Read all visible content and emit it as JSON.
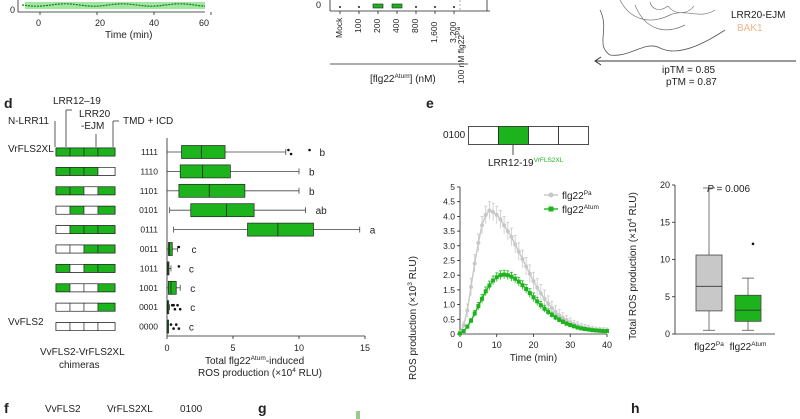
{
  "colors": {
    "green": "#1db31d",
    "dark_green": "#0f7a0f",
    "light_green": "#8be08b",
    "grey": "#c8c8c8",
    "dark_grey": "#7a7a7a",
    "peach": "#f0b48c",
    "axis": "#222222"
  },
  "panel_top_left": {
    "xlabel": "Time (min)",
    "ticks": [
      "0",
      "20",
      "40",
      "60"
    ]
  },
  "panel_top_mid": {
    "categories": [
      "Mock",
      "100",
      "200",
      "400",
      "800",
      "1,600",
      "3,200"
    ],
    "extra_category": "100 nM flg22",
    "extra_sup": "Pa",
    "xlabel_main": "[flg22",
    "xlabel_sup": "Atum",
    "xlabel_end": "] (nM)"
  },
  "panel_top_right": {
    "legend_main": "LRR20-EJM",
    "legend_sub": "BAK1",
    "iptm": "ipTM = 0.85",
    "ptm": "pTM = 0.87"
  },
  "panel_d": {
    "label": "d",
    "domains": {
      "lrr12_19": "LRR12–19",
      "n_lrr11": "N-LRR11",
      "lrr20_a": "LRR20",
      "lrr20_b": "-EJM",
      "tmd_icd": "TMD + ICD"
    },
    "top_construct": "VrFLS2XL",
    "bottom_construct": "VvFLS2",
    "chimera_caption_1": "VvFLS2-VrFLS2XL",
    "chimera_caption_2": "chimeras",
    "xlabel_1a": "Total flg22",
    "xlabel_1sup": "Atum",
    "xlabel_1b": "-induced",
    "xlabel_2": "ROS production (×10",
    "xlabel_2sup": "4",
    "xlabel_2b": " RLU)"
  },
  "panel_e": {
    "label": "e",
    "construct_code": "0100",
    "construct_label": "LRR12-19",
    "construct_sup": "VrFLS2XL"
  },
  "panel_labels": {
    "f": "f",
    "g": "g",
    "h": "h"
  },
  "panel_f": {
    "labels": [
      "VvFLS2",
      "VrFLS2XL",
      "0100"
    ]
  },
  "chart_data": [
    {
      "type": "box",
      "id": "d",
      "orientation": "horizontal",
      "title": "",
      "xlabel": "Total flg22Atum-induced ROS production (×10^4 RLU)",
      "xlim": [
        0,
        15
      ],
      "xticks": [
        "0",
        "5",
        "10",
        "15"
      ],
      "rows": [
        {
          "code": "1111",
          "pattern": [
            1,
            1,
            1,
            1
          ],
          "whislo": 0.0,
          "q1": 1.1,
          "med": 2.6,
          "q3": 4.4,
          "whishi": 9.0,
          "outliers": [
            9.2,
            9.4,
            10.8
          ],
          "letter": "b"
        },
        {
          "code": "1110",
          "pattern": [
            1,
            1,
            1,
            0
          ],
          "whislo": 0.0,
          "q1": 1.0,
          "med": 2.7,
          "q3": 4.8,
          "whishi": 10.0,
          "outliers": [],
          "letter": "b"
        },
        {
          "code": "1101",
          "pattern": [
            1,
            1,
            0,
            1
          ],
          "whislo": 0.0,
          "q1": 0.9,
          "med": 3.2,
          "q3": 5.9,
          "whishi": 10.0,
          "outliers": [],
          "letter": "b"
        },
        {
          "code": "0101",
          "pattern": [
            0,
            1,
            0,
            1
          ],
          "whislo": 0.2,
          "q1": 1.8,
          "med": 4.5,
          "q3": 6.6,
          "whishi": 10.5,
          "outliers": [],
          "letter": "ab"
        },
        {
          "code": "0111",
          "pattern": [
            0,
            1,
            1,
            1
          ],
          "whislo": 0.5,
          "q1": 6.1,
          "med": 8.4,
          "q3": 11.1,
          "whishi": 14.6,
          "outliers": [],
          "letter": "a"
        },
        {
          "code": "0011",
          "pattern": [
            0,
            0,
            1,
            1
          ],
          "whislo": 0.0,
          "q1": 0.1,
          "med": 0.2,
          "q3": 0.4,
          "whishi": 0.8,
          "outliers": [
            0.9
          ],
          "letter": "c"
        },
        {
          "code": "1011",
          "pattern": [
            1,
            0,
            1,
            1
          ],
          "whislo": 0.0,
          "q1": 0.02,
          "med": 0.08,
          "q3": 0.15,
          "whishi": 0.3,
          "outliers": [
            0.9
          ],
          "letter": "c"
        },
        {
          "code": "1001",
          "pattern": [
            1,
            0,
            0,
            1
          ],
          "whislo": 0.0,
          "q1": 0.1,
          "med": 0.3,
          "q3": 0.7,
          "whishi": 1.0,
          "outliers": [],
          "letter": "c"
        },
        {
          "code": "0001",
          "pattern": [
            0,
            0,
            0,
            1
          ],
          "whislo": 0.0,
          "q1": 0.02,
          "med": 0.05,
          "q3": 0.1,
          "whishi": 0.2,
          "outliers": [
            0.4,
            0.6,
            0.8,
            1.0,
            0.5
          ],
          "letter": "c"
        },
        {
          "code": "0000",
          "pattern": [
            0,
            0,
            0,
            0
          ],
          "whislo": 0.0,
          "q1": 0.01,
          "med": 0.03,
          "q3": 0.06,
          "whishi": 0.1,
          "outliers": [
            0.3,
            0.5,
            0.7,
            0.9
          ],
          "letter": "c"
        }
      ]
    },
    {
      "type": "line",
      "id": "e-line",
      "ylabel": "ROS production (×10³ RLU)",
      "xlabel": "Time (min)",
      "xlim": [
        0,
        40
      ],
      "ylim": [
        0,
        5
      ],
      "xticks": [
        "0",
        "10",
        "20",
        "30",
        "40"
      ],
      "yticks": [
        "0",
        "0.5",
        "1.0",
        "1.5",
        "2.0",
        "2.5",
        "3.0",
        "3.5",
        "4.0",
        "4.5",
        "5"
      ],
      "x": [
        0,
        1,
        2,
        3,
        4,
        5,
        6,
        7,
        8,
        9,
        10,
        11,
        12,
        13,
        14,
        15,
        16,
        17,
        18,
        19,
        20,
        21,
        22,
        23,
        24,
        25,
        26,
        27,
        28,
        29,
        30,
        31,
        32,
        33,
        34,
        35,
        36,
        37,
        38,
        39,
        40
      ],
      "series": [
        {
          "name": "flg22",
          "sup": "Pa",
          "values": [
            0.05,
            0.3,
            0.8,
            1.6,
            2.4,
            3.1,
            3.7,
            4.05,
            4.2,
            4.15,
            4.05,
            3.9,
            3.7,
            3.5,
            3.3,
            3.05,
            2.8,
            2.55,
            2.3,
            2.05,
            1.8,
            1.58,
            1.38,
            1.2,
            1.03,
            0.88,
            0.75,
            0.64,
            0.55,
            0.47,
            0.4,
            0.34,
            0.29,
            0.25,
            0.22,
            0.19,
            0.17,
            0.15,
            0.14,
            0.13,
            0.12
          ],
          "err": 0.3
        },
        {
          "name": "flg22",
          "sup": "Atum",
          "values": [
            0.02,
            0.1,
            0.25,
            0.45,
            0.7,
            0.95,
            1.2,
            1.45,
            1.65,
            1.82,
            1.93,
            2.0,
            2.02,
            2.0,
            1.95,
            1.88,
            1.78,
            1.66,
            1.53,
            1.39,
            1.25,
            1.11,
            0.98,
            0.86,
            0.75,
            0.65,
            0.56,
            0.48,
            0.41,
            0.35,
            0.3,
            0.26,
            0.22,
            0.19,
            0.17,
            0.15,
            0.13,
            0.12,
            0.11,
            0.1,
            0.1
          ],
          "err": 0.15
        }
      ]
    },
    {
      "type": "box",
      "id": "e-box",
      "orientation": "vertical",
      "ylabel": "Total ROS production (×10⁴ RLU)",
      "ylim": [
        0,
        20
      ],
      "yticks": [
        "0",
        "5",
        "10",
        "15",
        "20"
      ],
      "annotation": "= 0.006",
      "annotation_p": "P",
      "categories": [
        {
          "name": "flg22",
          "sup": "Pa",
          "whislo": 0.5,
          "q1": 3.1,
          "med": 6.4,
          "q3": 10.6,
          "whishi": 19.6,
          "outliers": []
        },
        {
          "name": "flg22",
          "sup": "Atum",
          "whislo": 0.5,
          "q1": 1.7,
          "med": 3.2,
          "q3": 5.2,
          "whishi": 7.5,
          "outliers": [
            12.1
          ]
        }
      ]
    },
    {
      "type": "line",
      "id": "top-left-fragment",
      "xlabel": "Time (min)",
      "xlim": [
        0,
        60
      ],
      "xticks": [
        "0",
        "20",
        "40",
        "60"
      ],
      "yticks": [
        "0"
      ]
    },
    {
      "type": "box",
      "id": "top-mid-fragment",
      "categories": [
        "Mock",
        "100",
        "200",
        "400",
        "800",
        "1,600",
        "3,200",
        "100 nM flg22Pa"
      ],
      "yticks": [
        "0"
      ]
    }
  ]
}
